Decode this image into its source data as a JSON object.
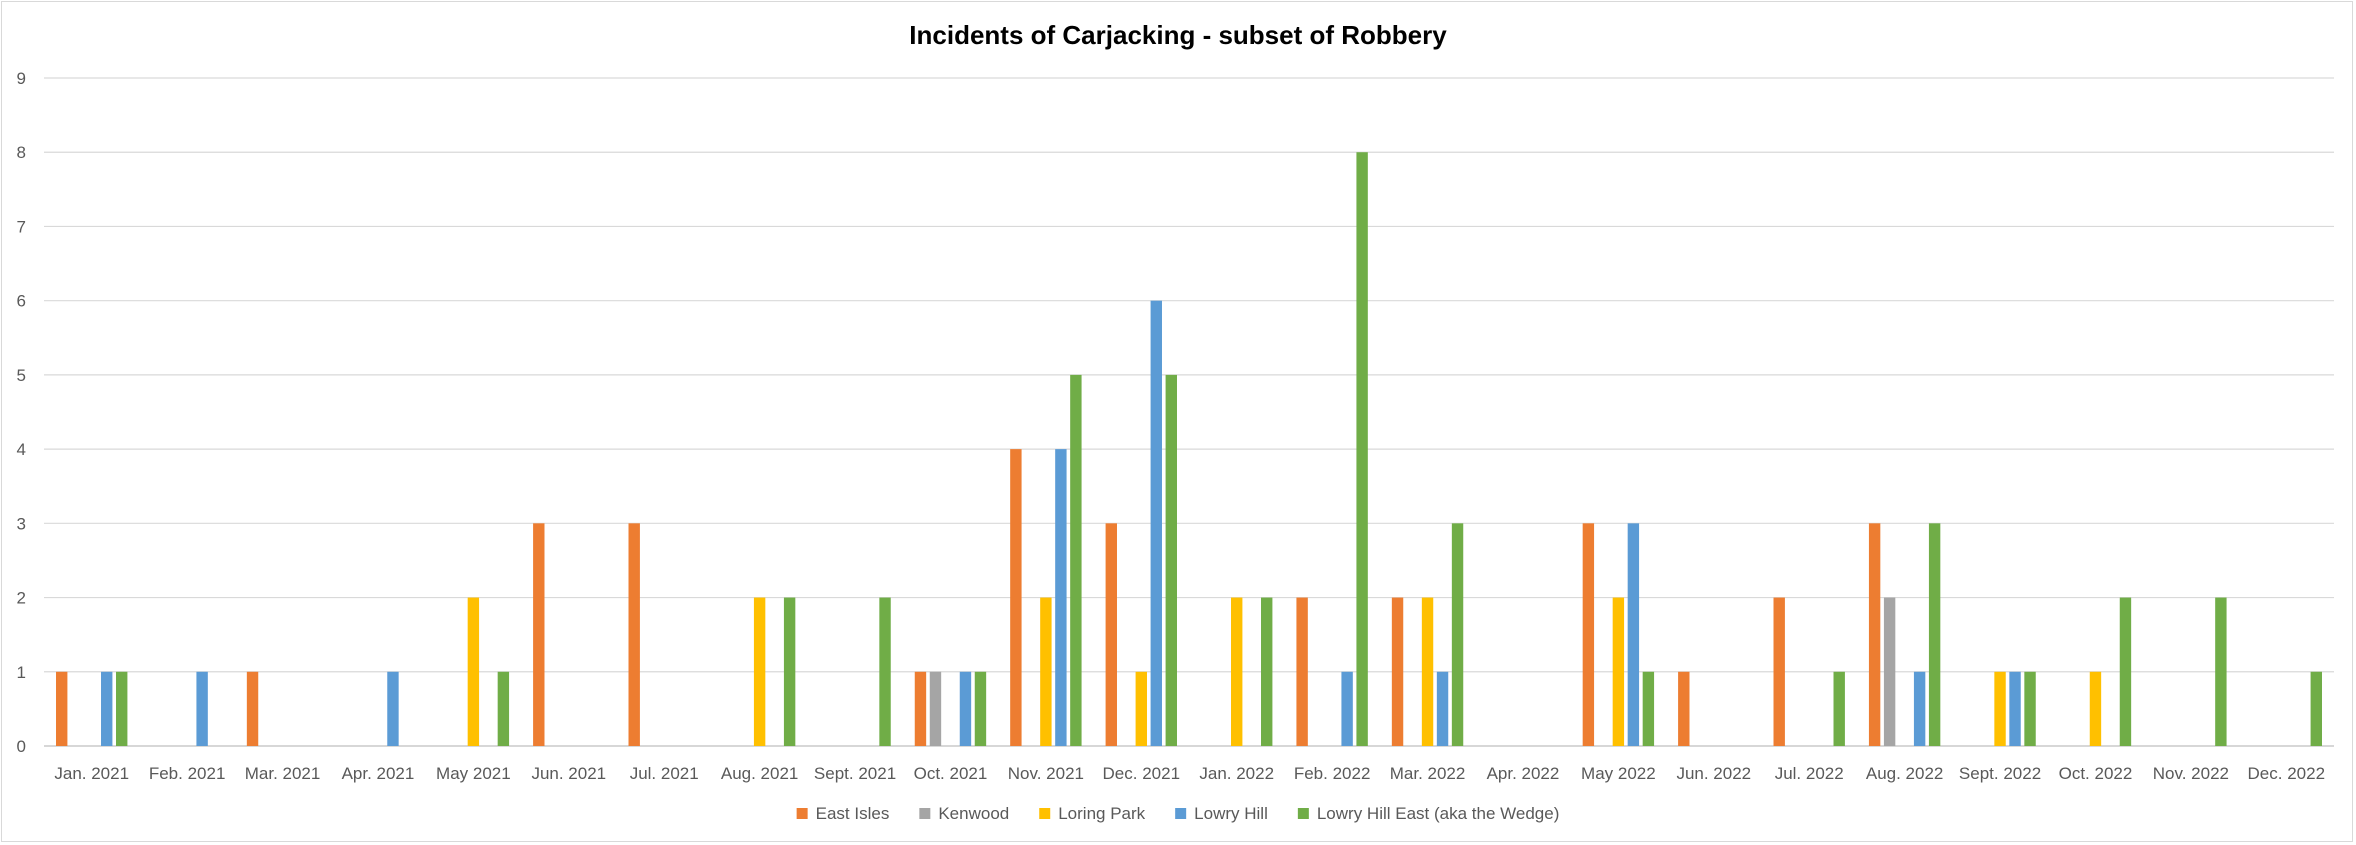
{
  "chart_data": {
    "type": "bar",
    "title": "Incidents of Carjacking - subset of Robbery",
    "xlabel": "",
    "ylabel": "",
    "ylim": [
      0,
      9
    ],
    "yticks": [
      0,
      1,
      2,
      3,
      4,
      5,
      6,
      7,
      8,
      9
    ],
    "grid": true,
    "legend_position": "bottom",
    "categories": [
      "Jan. 2021",
      "Feb. 2021",
      "Mar. 2021",
      "Apr. 2021",
      "May 2021",
      "Jun. 2021",
      "Jul. 2021",
      "Aug. 2021",
      "Sept. 2021",
      "Oct. 2021",
      "Nov. 2021",
      "Dec. 2021",
      "Jan. 2022",
      "Feb. 2022",
      "Mar. 2022",
      "Apr. 2022",
      "May 2022",
      "Jun. 2022",
      "Jul. 2022",
      "Aug. 2022",
      "Sept. 2022",
      "Oct. 2022",
      "Nov. 2022",
      "Dec. 2022"
    ],
    "series": [
      {
        "name": "East Isles",
        "color": "#ED7D31",
        "values": [
          1,
          0,
          1,
          0,
          0,
          3,
          3,
          0,
          0,
          1,
          4,
          3,
          0,
          2,
          2,
          0,
          3,
          1,
          2,
          3,
          0,
          0,
          0,
          0
        ]
      },
      {
        "name": "Kenwood",
        "color": "#A5A5A5",
        "values": [
          0,
          0,
          0,
          0,
          0,
          0,
          0,
          0,
          0,
          1,
          0,
          0,
          0,
          0,
          0,
          0,
          0,
          0,
          0,
          2,
          0,
          0,
          0,
          0
        ]
      },
      {
        "name": "Loring Park",
        "color": "#FFC000",
        "values": [
          0,
          0,
          0,
          0,
          2,
          0,
          0,
          2,
          0,
          0,
          2,
          1,
          2,
          0,
          2,
          0,
          2,
          0,
          0,
          0,
          1,
          1,
          0,
          0
        ]
      },
      {
        "name": "Lowry Hill",
        "color": "#5B9BD5",
        "values": [
          1,
          1,
          0,
          1,
          0,
          0,
          0,
          0,
          0,
          1,
          4,
          6,
          0,
          1,
          1,
          0,
          3,
          0,
          0,
          1,
          1,
          0,
          0,
          0
        ]
      },
      {
        "name": "Lowry Hill East (aka the Wedge)",
        "color": "#70AD47",
        "values": [
          1,
          0,
          0,
          0,
          1,
          0,
          0,
          2,
          2,
          1,
          5,
          5,
          2,
          8,
          3,
          0,
          1,
          0,
          1,
          3,
          1,
          2,
          2,
          1
        ]
      }
    ]
  },
  "style": {
    "grid_color": "#d9d9d9",
    "axis_color": "#bfbfbf"
  }
}
